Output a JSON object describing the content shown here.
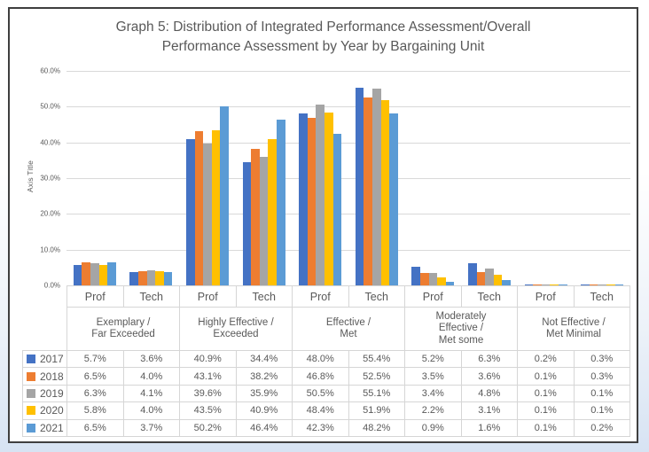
{
  "frame": {
    "border_color": "#3f3f3f",
    "page_background_bottom": "#d7e3f3"
  },
  "chart_data": {
    "type": "bar",
    "title": "Graph 5: Distribution of Integrated Performance Assessment/Overall Performance Assessment by Year by Bargaining Unit",
    "title_lines": [
      "Graph 5: Distribution of Integrated Performance Assessment/Overall",
      "Performance Assessment by Year by Bargaining Unit"
    ],
    "ylabel": "Axis Title",
    "xlabel": "",
    "ylim": [
      0,
      60
    ],
    "ytick_labels": [
      "0.0%",
      "10.0%",
      "20.0%",
      "30.0%",
      "40.0%",
      "50.0%",
      "60.0%"
    ],
    "grid": "horizontal",
    "legend_position": "table-left",
    "categories": [
      "Prof",
      "Tech",
      "Prof",
      "Tech",
      "Prof",
      "Tech",
      "Prof",
      "Tech",
      "Prof",
      "Tech"
    ],
    "group_labels": [
      "Exemplary /\nFar Exceeded",
      "Highly Effective /\nExceeded",
      "Effective /\nMet",
      "Moderately\nEffective /\nMet some",
      "Not Effective /\nMet Minimal"
    ],
    "series": [
      {
        "name": "2017",
        "color": "#4472C4",
        "values": [
          5.7,
          3.6,
          40.9,
          34.4,
          48.0,
          55.4,
          5.2,
          6.3,
          0.2,
          0.3
        ]
      },
      {
        "name": "2018",
        "color": "#ED7D31",
        "values": [
          6.5,
          4.0,
          43.1,
          38.2,
          46.8,
          52.5,
          3.5,
          3.6,
          0.1,
          0.3
        ]
      },
      {
        "name": "2019",
        "color": "#A5A5A5",
        "values": [
          6.3,
          4.1,
          39.6,
          35.9,
          50.5,
          55.1,
          3.4,
          4.8,
          0.1,
          0.1
        ]
      },
      {
        "name": "2020",
        "color": "#FFC000",
        "values": [
          5.8,
          4.0,
          43.5,
          40.9,
          48.4,
          51.9,
          2.2,
          3.1,
          0.1,
          0.1
        ]
      },
      {
        "name": "2021",
        "color": "#5B9BD5",
        "values": [
          6.5,
          3.7,
          50.2,
          46.4,
          42.3,
          48.2,
          0.9,
          1.6,
          0.1,
          0.2
        ]
      }
    ],
    "value_suffix": "%",
    "gridline_color": "#d9d9d9",
    "text_color": "#595959"
  }
}
